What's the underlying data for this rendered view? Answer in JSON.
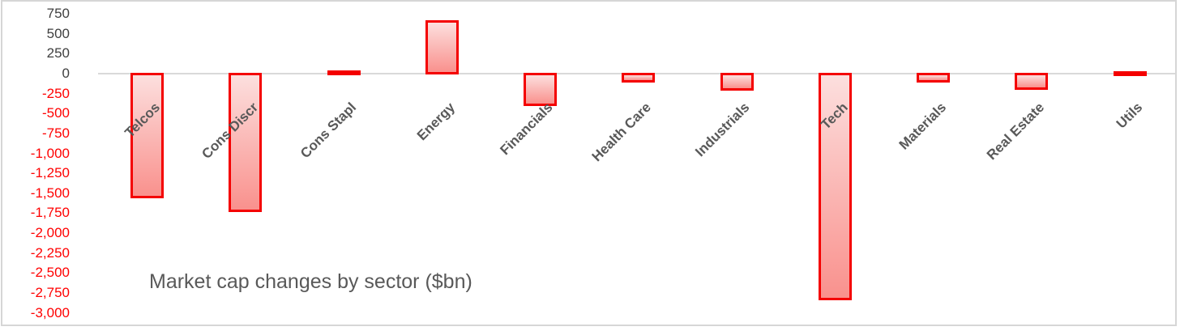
{
  "chart_data": {
    "type": "bar",
    "title": "Market cap changes by sector ($bn)",
    "categories": [
      "Telcos",
      "Cons Discr",
      "Cons Stapl",
      "Energy",
      "Financials",
      "Health Care",
      "Industrials",
      "Tech",
      "Materials",
      "Real Estate",
      "Utils"
    ],
    "values": [
      -1575,
      -1750,
      50,
      675,
      -420,
      -120,
      -225,
      -2850,
      -120,
      -215,
      25
    ],
    "xlabel": "",
    "ylabel": "",
    "ylim": [
      -3000,
      750
    ],
    "ytick_step": 250,
    "ytick_labels": [
      "750",
      "500",
      "250",
      "0",
      "-250",
      "-500",
      "-750",
      "-1,000",
      "-1,250",
      "-1,500",
      "-1,750",
      "-2,000",
      "-2,250",
      "-2,500",
      "-2,750",
      "-3,000"
    ],
    "grid": false,
    "legend": "none",
    "colors": {
      "bar_border": "#f40000",
      "bar_fill_top": "#fcdfde",
      "bar_fill_bottom": "#f9918d",
      "axis_line": "#d9d9d9",
      "tick_positive": "#3f3f3f",
      "tick_negative": "#ff0000",
      "category_label": "#595959",
      "title": "#595959"
    }
  }
}
